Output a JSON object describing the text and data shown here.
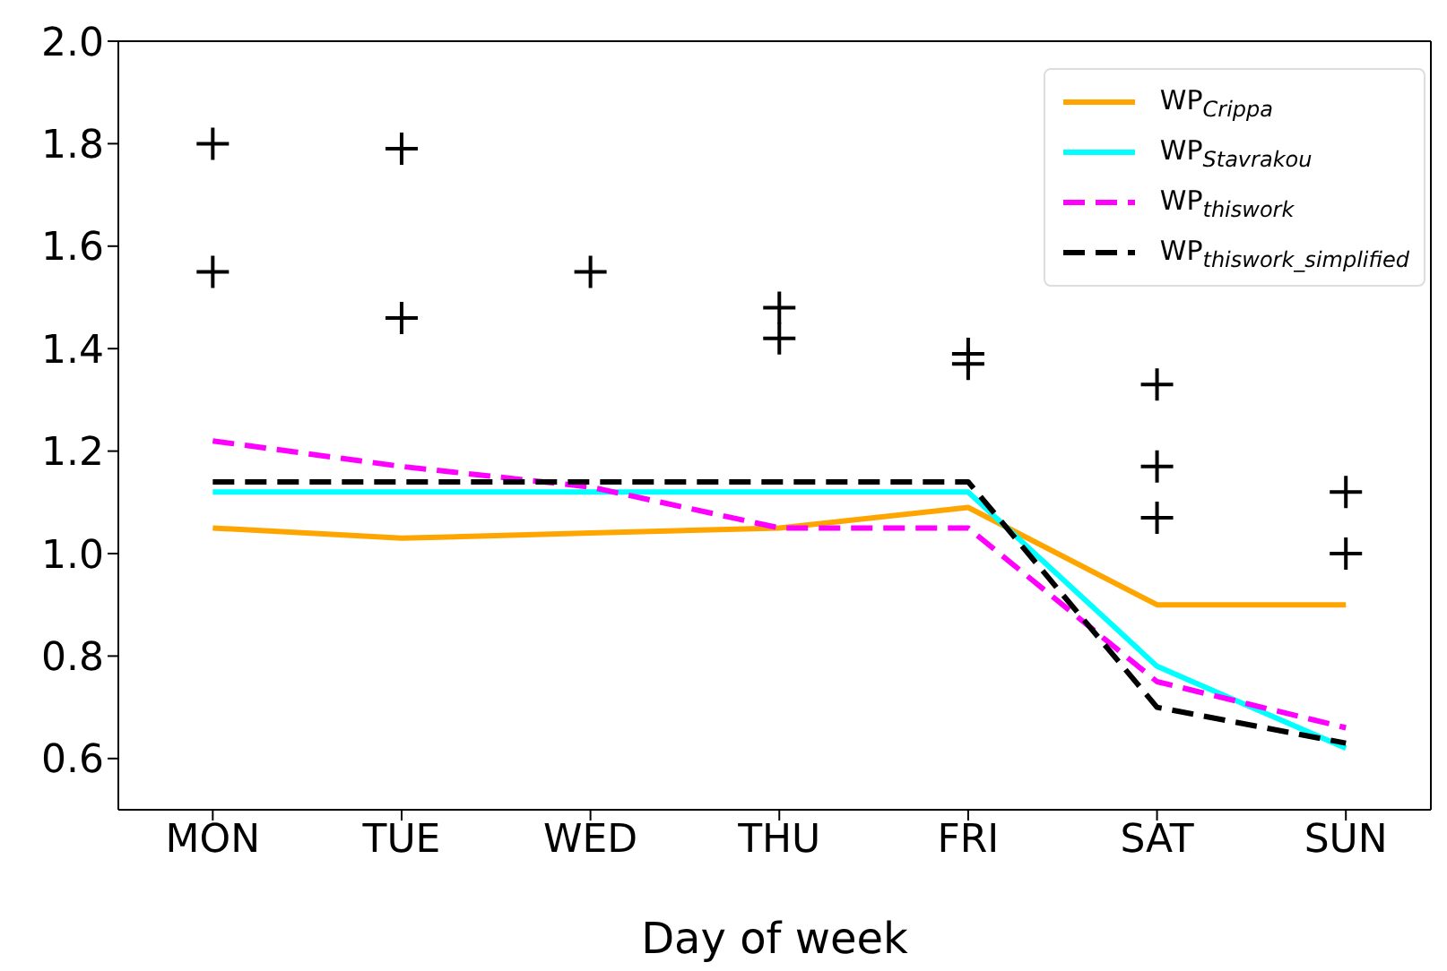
{
  "chart_data": {
    "type": "line",
    "xlabel": "Day of week",
    "categories": [
      "MON",
      "TUE",
      "WED",
      "THU",
      "FRI",
      "SAT",
      "SUN"
    ],
    "ylim": [
      0.5,
      2.0
    ],
    "yticks": [
      0.6,
      0.8,
      {
        "value": 1,
        "label": "1.0"
      },
      1.2,
      1.4,
      1.6,
      1.8,
      {
        "value": 2,
        "label": "2.0"
      }
    ],
    "grid": false,
    "legend": "top right",
    "marker": "none",
    "series": [
      {
        "name": "WP$_{Crippa}$",
        "color": "#ffa500",
        "line_style": "solid",
        "values": [
          1.05,
          1.03,
          1.04,
          1.05,
          1.09,
          0.9,
          0.9
        ]
      },
      {
        "name": "WP$_{Stavrakou}$",
        "color": "#00ffff",
        "line_style": "solid",
        "values": [
          1.12,
          1.12,
          1.12,
          1.12,
          1.12,
          0.78,
          0.62
        ]
      },
      {
        "name": "WP$_{thiswork}$",
        "color": "#ff00ff",
        "line_style": "dashed",
        "values": [
          1.22,
          1.17,
          1.13,
          1.05,
          1.05,
          0.75,
          0.66
        ]
      },
      {
        "name": "WP$_{thiswork_simplified}$",
        "color": "#000000",
        "line_style": "dashed",
        "values": [
          1.14,
          1.14,
          1.14,
          1.14,
          1.14,
          0.7,
          0.63
        ]
      },
      {
        "type": "scatter",
        "marker": "cross",
        "color": "#000000",
        "x": [
          "MON",
          "MON",
          "TUE",
          "TUE",
          "WED",
          "THU",
          "THU",
          "FRI",
          "FRI",
          "SAT",
          "SAT",
          "SAT",
          "SUN",
          "SUN"
        ],
        "values": [
          1.8,
          1.55,
          1.79,
          1.46,
          1.55,
          1.48,
          1.42,
          1.39,
          1.37,
          1.33,
          1.17,
          1.07,
          1.12,
          1.0
        ]
      }
    ]
  }
}
